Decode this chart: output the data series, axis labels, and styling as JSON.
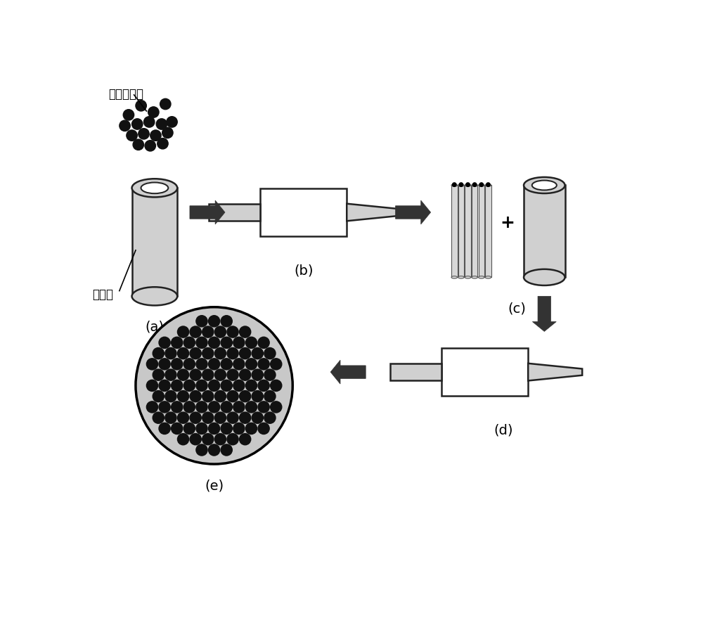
{
  "bg_color": "#ffffff",
  "label_a": "(a)",
  "label_b": "(b)",
  "label_c": "(c)",
  "label_d": "(d)",
  "label_e": "(e)",
  "text_graphene": "石墨烯颗粒",
  "text_metal_tube": "金属管",
  "tube_fill": "#d0d0d0",
  "tube_edge": "#222222",
  "wire_fill": "#d0d0d0",
  "wire_edge": "#222222",
  "arrow_color": "#333333",
  "particle_color": "#111111",
  "inner_dot_color": "#111111",
  "outer_circle_fill": "#c8c8c8",
  "label_fontsize": 14,
  "chinese_fontsize": 12
}
